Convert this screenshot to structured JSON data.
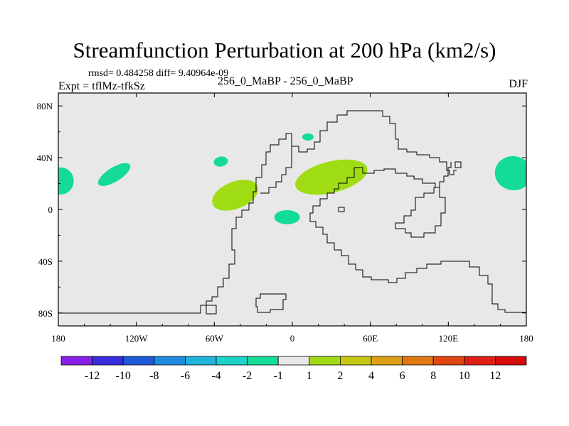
{
  "chart_data": {
    "type": "heatmap",
    "title": "Streamfunction Perturbation at 200 hPa (km2/s)",
    "stats_text": "rmsd= 0.484258 diff= 9.40964e-09",
    "experiment_label": "Expt = tflMz-tfkSz",
    "center_label": "256_0_MaBP - 256_0_MaBP",
    "season": "DJF",
    "x_ticks": [
      {
        "lon": -180,
        "label": "180"
      },
      {
        "lon": -120,
        "label": "120W"
      },
      {
        "lon": -60,
        "label": "60W"
      },
      {
        "lon": 0,
        "label": "0"
      },
      {
        "lon": 60,
        "label": "60E"
      },
      {
        "lon": 120,
        "label": "120E"
      },
      {
        "lon": 180,
        "label": "180"
      }
    ],
    "y_ticks": [
      {
        "lat": 80,
        "label": "80N"
      },
      {
        "lat": 40,
        "label": "40N"
      },
      {
        "lat": 0,
        "label": "0"
      },
      {
        "lat": -40,
        "label": "40S"
      },
      {
        "lat": -80,
        "label": "80S"
      }
    ],
    "xlim": [
      -180,
      180
    ],
    "ylim": [
      -90,
      90
    ],
    "colorbar": {
      "levels": [
        "-12",
        "-10",
        "-8",
        "-6",
        "-4",
        "-2",
        "-1",
        "1",
        "2",
        "4",
        "6",
        "8",
        "10",
        "12"
      ],
      "colors": [
        "#8a1ee6",
        "#3a2de0",
        "#1e5ad8",
        "#1e8ce0",
        "#1eb4dc",
        "#1ed2c8",
        "#14dc96",
        "#e8e8e8",
        "#a0dc14",
        "#c8c814",
        "#dca014",
        "#e07814",
        "#e04614",
        "#e01e14",
        "#d80a0a"
      ]
    },
    "anomaly_regions": [
      {
        "category": "-2 to -1",
        "color": "#14dc96",
        "lon": -178,
        "lat": 22
      },
      {
        "category": "-2 to -1",
        "color": "#14dc96",
        "lon": -137,
        "lat": 27
      },
      {
        "category": "-2 to -1",
        "color": "#14dc96",
        "lon": -55,
        "lat": 37
      },
      {
        "category": "-2 to -1",
        "color": "#14dc96",
        "lon": 12,
        "lat": 56
      },
      {
        "category": "-2 to -1",
        "color": "#14dc96",
        "lon": -4,
        "lat": -6
      },
      {
        "category": "-2 to -1",
        "color": "#14dc96",
        "lon": 170,
        "lat": 28
      },
      {
        "category": "1 to 2",
        "color": "#a0dc14",
        "lon": -44,
        "lat": 11
      },
      {
        "category": "1 to 2",
        "color": "#a0dc14",
        "lon": 30,
        "lat": 25
      }
    ]
  }
}
